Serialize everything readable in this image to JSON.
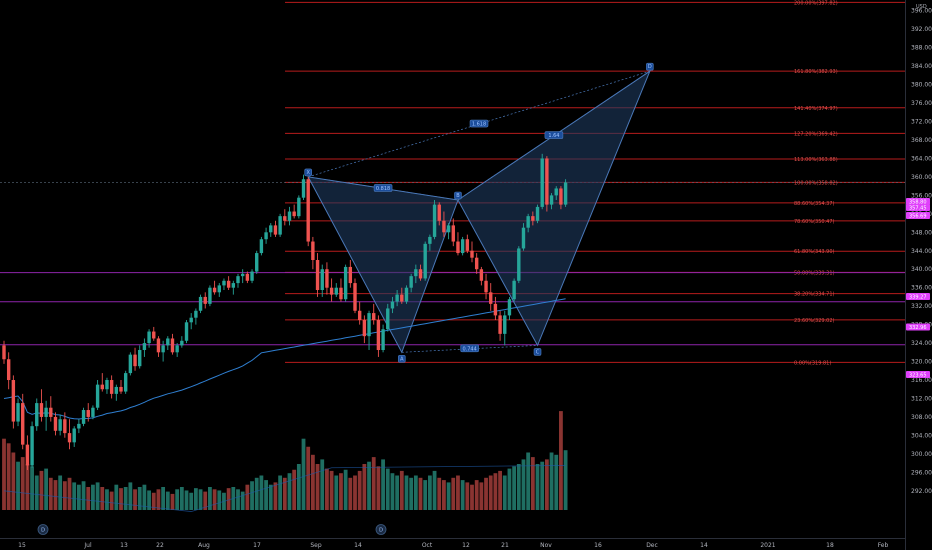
{
  "chart_data": {
    "type": "candlestick",
    "currency": "USD",
    "ylim": [
      286,
      398
    ],
    "y_ticks": [
      "292.00",
      "296.00",
      "300.00",
      "304.00",
      "308.00",
      "312.00",
      "316.00",
      "320.00",
      "324.00",
      "328.00",
      "332.00",
      "336.00",
      "340.00",
      "344.00",
      "348.00",
      "352.00",
      "356.00",
      "360.00",
      "364.00",
      "368.00",
      "372.00",
      "376.00",
      "380.00",
      "384.00",
      "388.00",
      "392.00",
      "396.00"
    ],
    "x_ticks": [
      "15",
      "Jul",
      "13",
      "22",
      "Aug",
      "17",
      "Sep",
      "14",
      "Oct",
      "12",
      "21",
      "Nov",
      "16",
      "Dec",
      "14",
      "2021",
      "18",
      "Feb"
    ],
    "price_tags": [
      {
        "text": "358.80",
        "value": 358.8,
        "color": "#e040fb"
      },
      {
        "text": "357.45",
        "value": 357.45,
        "color": "#e040fb"
      },
      {
        "text": "356.69",
        "value": 356.69,
        "color": "#e040fb"
      },
      {
        "text": "339.27",
        "value": 339.27,
        "color": "#e040fb"
      },
      {
        "text": "332.96",
        "value": 332.96,
        "color": "#e040fb"
      },
      {
        "text": "323.65",
        "value": 323.65,
        "color": "#e040fb"
      }
    ],
    "fib_levels": [
      {
        "label": "200.00%(397.82)",
        "value": 397.82
      },
      {
        "label": "161.80%(382.93)",
        "value": 382.93
      },
      {
        "label": "141.40%(374.97)",
        "value": 374.97
      },
      {
        "label": "127.20%(369.42)",
        "value": 369.42
      },
      {
        "label": "113.00%(363.88)",
        "value": 363.88
      },
      {
        "label": "100.00%(358.82)",
        "value": 358.82
      },
      {
        "label": "88.60%(354.37)",
        "value": 354.37
      },
      {
        "label": "78.60%(350.47)",
        "value": 350.47
      },
      {
        "label": "61.80%(343.90)",
        "value": 343.9
      },
      {
        "label": "50.00%(339.31)",
        "value": 339.31
      },
      {
        "label": "38.20%(334.71)",
        "value": 334.71
      },
      {
        "label": "23.60%(329.02)",
        "value": 329.02
      },
      {
        "label": "0.00%(319.81)",
        "value": 319.81
      }
    ],
    "pattern_points": [
      {
        "label": "X",
        "date_index": 65,
        "price": 360.0
      },
      {
        "label": "A",
        "date_index": 85,
        "price": 322.0
      },
      {
        "label": "B",
        "date_index": 97,
        "price": 355.0
      },
      {
        "label": "C",
        "date_index": 114,
        "price": 323.5
      },
      {
        "label": "D",
        "date_index": 138,
        "price": 382.9
      }
    ],
    "ratios": [
      {
        "text": "0.818",
        "near": "XB"
      },
      {
        "text": "0.744",
        "near": "AC"
      },
      {
        "text": "1.618",
        "near": "XD"
      },
      {
        "text": "1.64",
        "near": "BD"
      }
    ],
    "event_markers": [
      "D",
      "D"
    ],
    "candles": [
      {
        "o": 323.5,
        "h": 324.5,
        "l": 319.5,
        "c": 320.5
      },
      {
        "o": 320.5,
        "h": 322,
        "l": 314,
        "c": 316
      },
      {
        "o": 316,
        "h": 317,
        "l": 305.5,
        "c": 307
      },
      {
        "o": 307,
        "h": 312,
        "l": 306,
        "c": 311
      },
      {
        "o": 311,
        "h": 313,
        "l": 301,
        "c": 302
      },
      {
        "o": 302,
        "h": 304,
        "l": 296.5,
        "c": 297.5
      },
      {
        "o": 297.5,
        "h": 307,
        "l": 297,
        "c": 306
      },
      {
        "o": 306,
        "h": 312,
        "l": 305,
        "c": 311
      },
      {
        "o": 311,
        "h": 314,
        "l": 307,
        "c": 308
      },
      {
        "o": 308,
        "h": 311.5,
        "l": 305,
        "c": 310
      },
      {
        "o": 310,
        "h": 312.5,
        "l": 307,
        "c": 308
      },
      {
        "o": 308,
        "h": 309,
        "l": 304,
        "c": 305
      },
      {
        "o": 305,
        "h": 308.5,
        "l": 304,
        "c": 307.5
      },
      {
        "o": 307.5,
        "h": 309,
        "l": 303.5,
        "c": 304.5
      },
      {
        "o": 304.5,
        "h": 307.5,
        "l": 301,
        "c": 302.5
      },
      {
        "o": 302.5,
        "h": 306,
        "l": 301.5,
        "c": 305.5
      },
      {
        "o": 305.5,
        "h": 307.5,
        "l": 304.5,
        "c": 306.5
      },
      {
        "o": 306.5,
        "h": 310,
        "l": 306,
        "c": 309.5
      },
      {
        "o": 309.5,
        "h": 311,
        "l": 307,
        "c": 308
      },
      {
        "o": 308,
        "h": 310.5,
        "l": 307.5,
        "c": 310
      },
      {
        "o": 310,
        "h": 316,
        "l": 309.5,
        "c": 315
      },
      {
        "o": 315,
        "h": 317.5,
        "l": 313.5,
        "c": 314
      },
      {
        "o": 314,
        "h": 316.5,
        "l": 313,
        "c": 316
      },
      {
        "o": 316,
        "h": 317,
        "l": 312,
        "c": 313
      },
      {
        "o": 313,
        "h": 315,
        "l": 311.5,
        "c": 314.5
      },
      {
        "o": 314.5,
        "h": 316,
        "l": 313,
        "c": 313.5
      },
      {
        "o": 313.5,
        "h": 318,
        "l": 313,
        "c": 317.5
      },
      {
        "o": 317.5,
        "h": 322,
        "l": 317,
        "c": 321.5
      },
      {
        "o": 321.5,
        "h": 323,
        "l": 318,
        "c": 319
      },
      {
        "o": 319,
        "h": 323.5,
        "l": 318.5,
        "c": 322.5
      },
      {
        "o": 322.5,
        "h": 325,
        "l": 321,
        "c": 324
      },
      {
        "o": 324,
        "h": 327,
        "l": 323,
        "c": 326.5
      },
      {
        "o": 326.5,
        "h": 327.5,
        "l": 324.5,
        "c": 325
      },
      {
        "o": 325,
        "h": 325.5,
        "l": 321,
        "c": 322
      },
      {
        "o": 322,
        "h": 324.5,
        "l": 320,
        "c": 323.5
      },
      {
        "o": 323.5,
        "h": 325.5,
        "l": 322.5,
        "c": 325
      },
      {
        "o": 325,
        "h": 326,
        "l": 321.5,
        "c": 322
      },
      {
        "o": 322,
        "h": 324,
        "l": 321,
        "c": 323.5
      },
      {
        "o": 323.5,
        "h": 325.5,
        "l": 323,
        "c": 324.5
      },
      {
        "o": 324.5,
        "h": 329,
        "l": 324,
        "c": 328.5
      },
      {
        "o": 328.5,
        "h": 330.5,
        "l": 327,
        "c": 329.5
      },
      {
        "o": 329.5,
        "h": 331.5,
        "l": 328,
        "c": 331
      },
      {
        "o": 331,
        "h": 334.5,
        "l": 330.5,
        "c": 334
      },
      {
        "o": 334,
        "h": 335,
        "l": 331.5,
        "c": 332.5
      },
      {
        "o": 332.5,
        "h": 336.5,
        "l": 332,
        "c": 336
      },
      {
        "o": 336,
        "h": 337.5,
        "l": 334.5,
        "c": 335
      },
      {
        "o": 335,
        "h": 337,
        "l": 334,
        "c": 336.5
      },
      {
        "o": 336.5,
        "h": 338,
        "l": 335.5,
        "c": 337.5
      },
      {
        "o": 337.5,
        "h": 338.5,
        "l": 335.5,
        "c": 336
      },
      {
        "o": 336,
        "h": 337.5,
        "l": 334.5,
        "c": 337
      },
      {
        "o": 337,
        "h": 339,
        "l": 336,
        "c": 338.5
      },
      {
        "o": 338.5,
        "h": 340,
        "l": 337,
        "c": 339
      },
      {
        "o": 339,
        "h": 339.5,
        "l": 337,
        "c": 337.5
      },
      {
        "o": 337.5,
        "h": 340,
        "l": 337,
        "c": 339.5
      },
      {
        "o": 339.5,
        "h": 344,
        "l": 339,
        "c": 343.5
      },
      {
        "o": 343.5,
        "h": 347,
        "l": 343,
        "c": 346.5
      },
      {
        "o": 346.5,
        "h": 349,
        "l": 345.5,
        "c": 348
      },
      {
        "o": 348,
        "h": 350,
        "l": 347,
        "c": 349.5
      },
      {
        "o": 349.5,
        "h": 350.5,
        "l": 347,
        "c": 347.5
      },
      {
        "o": 347.5,
        "h": 352,
        "l": 347,
        "c": 351.5
      },
      {
        "o": 351.5,
        "h": 353,
        "l": 349.5,
        "c": 350.5
      },
      {
        "o": 350.5,
        "h": 353.5,
        "l": 349.5,
        "c": 352.5
      },
      {
        "o": 352.5,
        "h": 354,
        "l": 351,
        "c": 351.5
      },
      {
        "o": 351.5,
        "h": 356,
        "l": 351,
        "c": 355.5
      },
      {
        "o": 355.5,
        "h": 360.5,
        "l": 355,
        "c": 359.5
      },
      {
        "o": 359.5,
        "h": 360,
        "l": 345,
        "c": 346
      },
      {
        "o": 346,
        "h": 347,
        "l": 340,
        "c": 342
      },
      {
        "o": 342,
        "h": 343.5,
        "l": 334,
        "c": 335.5
      },
      {
        "o": 335.5,
        "h": 341,
        "l": 334,
        "c": 340
      },
      {
        "o": 340,
        "h": 341.5,
        "l": 334.5,
        "c": 336
      },
      {
        "o": 336,
        "h": 338,
        "l": 333,
        "c": 334.5
      },
      {
        "o": 334.5,
        "h": 337,
        "l": 334,
        "c": 336
      },
      {
        "o": 336,
        "h": 338,
        "l": 333,
        "c": 333.5
      },
      {
        "o": 333.5,
        "h": 341,
        "l": 333,
        "c": 340.5
      },
      {
        "o": 340.5,
        "h": 342,
        "l": 336,
        "c": 337
      },
      {
        "o": 337,
        "h": 338,
        "l": 330.5,
        "c": 331
      },
      {
        "o": 331,
        "h": 333,
        "l": 328,
        "c": 329
      },
      {
        "o": 329,
        "h": 330,
        "l": 324,
        "c": 325.5
      },
      {
        "o": 325.5,
        "h": 331,
        "l": 322.5,
        "c": 330.5
      },
      {
        "o": 330.5,
        "h": 332.5,
        "l": 328,
        "c": 329
      },
      {
        "o": 329,
        "h": 330,
        "l": 321,
        "c": 322.5
      },
      {
        "o": 322.5,
        "h": 328,
        "l": 322,
        "c": 327
      },
      {
        "o": 327,
        "h": 332.5,
        "l": 326.5,
        "c": 331.5
      },
      {
        "o": 331.5,
        "h": 334,
        "l": 330.5,
        "c": 333
      },
      {
        "o": 333,
        "h": 335.5,
        "l": 332,
        "c": 334.5
      },
      {
        "o": 334.5,
        "h": 336,
        "l": 332.5,
        "c": 333
      },
      {
        "o": 333,
        "h": 336.5,
        "l": 332.5,
        "c": 336
      },
      {
        "o": 336,
        "h": 339,
        "l": 335,
        "c": 338.5
      },
      {
        "o": 338.5,
        "h": 341,
        "l": 337,
        "c": 340
      },
      {
        "o": 340,
        "h": 341,
        "l": 337.5,
        "c": 338
      },
      {
        "o": 338,
        "h": 346,
        "l": 337.5,
        "c": 345.5
      },
      {
        "o": 345.5,
        "h": 347.5,
        "l": 344,
        "c": 347
      },
      {
        "o": 347,
        "h": 355,
        "l": 346.5,
        "c": 354
      },
      {
        "o": 354,
        "h": 354.5,
        "l": 349.5,
        "c": 350.5
      },
      {
        "o": 350.5,
        "h": 352.5,
        "l": 347,
        "c": 348
      },
      {
        "o": 348,
        "h": 350,
        "l": 346.5,
        "c": 349.5
      },
      {
        "o": 349.5,
        "h": 351,
        "l": 345,
        "c": 346
      },
      {
        "o": 346,
        "h": 348,
        "l": 343,
        "c": 343.5
      },
      {
        "o": 343.5,
        "h": 347,
        "l": 343,
        "c": 346.5
      },
      {
        "o": 346.5,
        "h": 347.5,
        "l": 343.5,
        "c": 344
      },
      {
        "o": 344,
        "h": 346,
        "l": 341.5,
        "c": 342.5
      },
      {
        "o": 342.5,
        "h": 343.5,
        "l": 339,
        "c": 340
      },
      {
        "o": 340,
        "h": 340.5,
        "l": 336.5,
        "c": 337.5
      },
      {
        "o": 337.5,
        "h": 339,
        "l": 333.5,
        "c": 335
      },
      {
        "o": 335,
        "h": 337,
        "l": 331,
        "c": 332.5
      },
      {
        "o": 332.5,
        "h": 334,
        "l": 329,
        "c": 330
      },
      {
        "o": 330,
        "h": 331,
        "l": 324.5,
        "c": 326
      },
      {
        "o": 326,
        "h": 331,
        "l": 323.5,
        "c": 330
      },
      {
        "o": 330,
        "h": 334,
        "l": 329,
        "c": 333.5
      },
      {
        "o": 333.5,
        "h": 338,
        "l": 333,
        "c": 337.5
      },
      {
        "o": 337.5,
        "h": 345,
        "l": 337,
        "c": 344.5
      },
      {
        "o": 344.5,
        "h": 350,
        "l": 344,
        "c": 349
      },
      {
        "o": 349,
        "h": 352,
        "l": 348,
        "c": 351.5
      },
      {
        "o": 351.5,
        "h": 352.5,
        "l": 349.5,
        "c": 350.5
      },
      {
        "o": 350.5,
        "h": 354,
        "l": 350,
        "c": 353.5
      },
      {
        "o": 353.5,
        "h": 365,
        "l": 353,
        "c": 364
      },
      {
        "o": 364,
        "h": 364.5,
        "l": 352.5,
        "c": 354
      },
      {
        "o": 354,
        "h": 356.5,
        "l": 353,
        "c": 356
      },
      {
        "o": 356,
        "h": 358,
        "l": 355,
        "c": 357.5
      },
      {
        "o": 357.5,
        "h": 358,
        "l": 353,
        "c": 354
      },
      {
        "o": 354,
        "h": 359.5,
        "l": 353.5,
        "c": 358.8
      }
    ],
    "volumes": [
      0.62,
      0.58,
      0.5,
      0.42,
      0.46,
      0.4,
      0.38,
      0.3,
      0.34,
      0.36,
      0.28,
      0.26,
      0.3,
      0.25,
      0.28,
      0.24,
      0.22,
      0.25,
      0.2,
      0.22,
      0.24,
      0.2,
      0.18,
      0.16,
      0.22,
      0.19,
      0.2,
      0.24,
      0.18,
      0.2,
      0.22,
      0.17,
      0.15,
      0.18,
      0.2,
      0.16,
      0.14,
      0.18,
      0.2,
      0.17,
      0.15,
      0.19,
      0.18,
      0.16,
      0.2,
      0.18,
      0.17,
      0.15,
      0.19,
      0.2,
      0.18,
      0.16,
      0.22,
      0.25,
      0.28,
      0.3,
      0.26,
      0.22,
      0.24,
      0.3,
      0.28,
      0.32,
      0.35,
      0.4,
      0.62,
      0.55,
      0.48,
      0.4,
      0.44,
      0.36,
      0.34,
      0.3,
      0.32,
      0.35,
      0.28,
      0.3,
      0.34,
      0.4,
      0.42,
      0.46,
      0.38,
      0.44,
      0.36,
      0.32,
      0.3,
      0.34,
      0.3,
      0.28,
      0.3,
      0.28,
      0.26,
      0.3,
      0.34,
      0.28,
      0.26,
      0.24,
      0.28,
      0.3,
      0.26,
      0.24,
      0.22,
      0.26,
      0.24,
      0.28,
      0.3,
      0.32,
      0.34,
      0.3,
      0.36,
      0.38,
      0.4,
      0.44,
      0.5,
      0.46,
      0.4,
      0.42,
      0.44,
      0.5,
      0.48,
      0.86,
      0.52,
      0.34,
      0.32,
      0.36,
      0.3
    ]
  },
  "colors": {
    "up": "#26a69a",
    "down": "#ef5350",
    "fib": "#b71c1c",
    "pattern_fill": "#1e3a5f",
    "pattern_line": "#4a78b8",
    "ma": "#2f7fd1",
    "tag": "#e040fb",
    "axis": "#b2b5be"
  }
}
